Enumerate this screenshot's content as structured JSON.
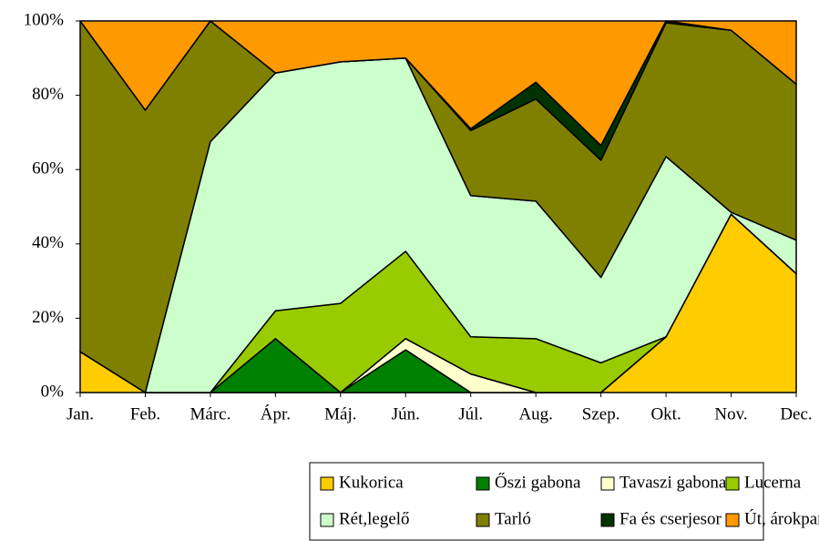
{
  "chart_data": {
    "type": "stacked_area_100",
    "categories": [
      "Jan.",
      "Feb.",
      "Márc.",
      "Ápr.",
      "Máj.",
      "Jún.",
      "Júl.",
      "Aug.",
      "Szep.",
      "Okt.",
      "Nov.",
      "Dec."
    ],
    "series": [
      {
        "name": "Kukorica",
        "color": "#ffcc00",
        "values": [
          11,
          0,
          0,
          0,
          0,
          0,
          0,
          0,
          0,
          15,
          48,
          32
        ]
      },
      {
        "name": "Őszi gabona",
        "color": "#008000",
        "values": [
          0,
          0,
          0,
          14.5,
          0,
          11.5,
          0,
          0,
          0,
          0,
          0,
          0
        ]
      },
      {
        "name": "Tavaszi gabona",
        "color": "#ffffcc",
        "values": [
          0,
          0,
          0,
          0,
          0,
          3,
          5,
          0,
          0,
          0,
          0,
          0
        ]
      },
      {
        "name": "Lucerna",
        "color": "#99cc00",
        "values": [
          0,
          0,
          0,
          7.5,
          24,
          23.5,
          10,
          14.5,
          8,
          0,
          0,
          0
        ]
      },
      {
        "name": "Rét,legelő",
        "color": "#ccffcc",
        "values": [
          0,
          0,
          67.5,
          64,
          65,
          52,
          38,
          37,
          23,
          48.5,
          0.5,
          9
        ]
      },
      {
        "name": "Tarló",
        "color": "#808000",
        "values": [
          89,
          76,
          32.5,
          0,
          0,
          0,
          17.5,
          27.5,
          31.5,
          36,
          49,
          42
        ]
      },
      {
        "name": "Fa és cserjesor",
        "color": "#003300",
        "values": [
          0,
          0,
          0,
          0,
          0,
          0,
          0.5,
          4.5,
          4,
          0.5,
          0,
          0
        ]
      },
      {
        "name": "Út, árokpart",
        "color": "#ff9900",
        "values": [
          0,
          24,
          0,
          14,
          11,
          10,
          29,
          16.5,
          33.5,
          0,
          2.5,
          17
        ]
      }
    ],
    "ylim": [
      0,
      100
    ],
    "yticks": [
      {
        "value": 0,
        "label": "0%"
      },
      {
        "value": 20,
        "label": "20%"
      },
      {
        "value": 40,
        "label": "40%"
      },
      {
        "value": 60,
        "label": "60%"
      },
      {
        "value": 80,
        "label": "80%"
      },
      {
        "value": 100,
        "label": "100%"
      }
    ],
    "legend": "bottom"
  }
}
